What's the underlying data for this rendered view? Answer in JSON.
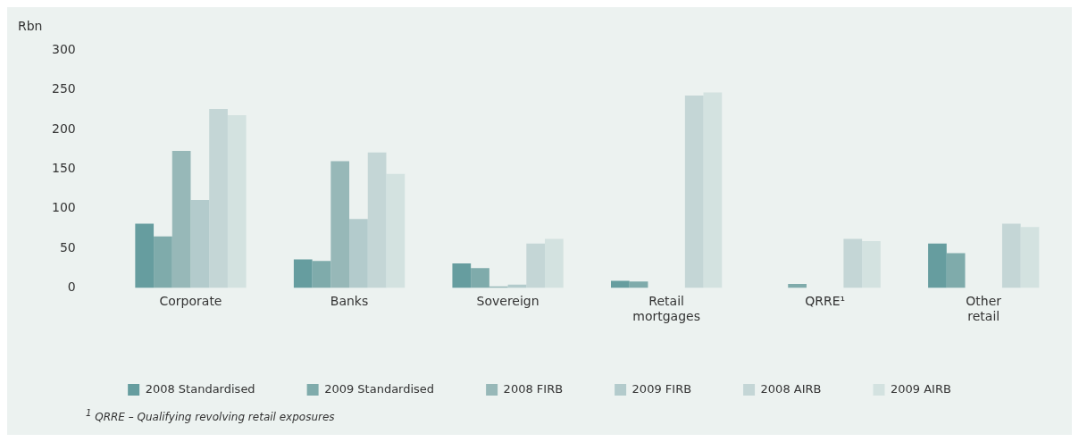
{
  "chart_data": {
    "type": "bar",
    "ylabel": "Rbn",
    "categories": [
      "Corporate",
      "Banks",
      "Sovereign",
      "Retail mortgages",
      "QRRE¹",
      "Other retail"
    ],
    "series": [
      {
        "name": "2008 Standardised",
        "color": "#669d9f",
        "values": [
          81,
          36,
          31,
          9,
          null,
          56
        ]
      },
      {
        "name": "2009 Standardised",
        "color": "#7fabab",
        "values": [
          65,
          34,
          25,
          8,
          5,
          44
        ]
      },
      {
        "name": "2008 FIRB",
        "color": "#97b8b8",
        "values": [
          173,
          160,
          2,
          null,
          null,
          null
        ]
      },
      {
        "name": "2009 FIRB",
        "color": "#b3cbcc",
        "values": [
          111,
          87,
          4,
          null,
          null,
          null
        ]
      },
      {
        "name": "2008 AIRB",
        "color": "#c4d6d6",
        "values": [
          226,
          171,
          56,
          243,
          62,
          81
        ]
      },
      {
        "name": "2009 AIRB",
        "color": "#d3e2e0",
        "values": [
          218,
          144,
          62,
          247,
          59,
          77
        ]
      }
    ],
    "ylim": [
      0,
      300
    ],
    "yticks": [
      0,
      50,
      100,
      150,
      200,
      250,
      300
    ],
    "grid": false,
    "legend": "bottom",
    "annotations": [
      "$^{1}$ QRRE – Qualifying revolving retail exposures"
    ]
  }
}
